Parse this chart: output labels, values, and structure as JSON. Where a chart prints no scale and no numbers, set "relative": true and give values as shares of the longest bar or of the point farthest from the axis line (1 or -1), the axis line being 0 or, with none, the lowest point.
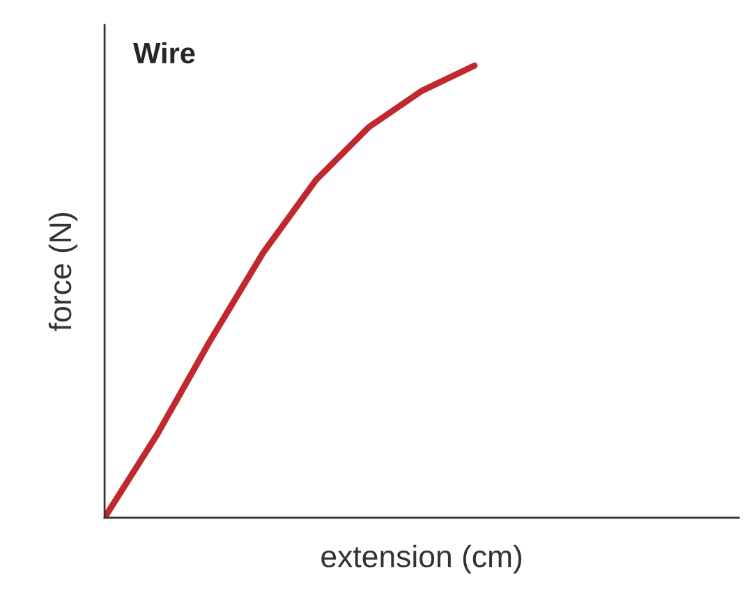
{
  "chart_data": {
    "type": "line",
    "title": "Wire",
    "xlabel": "extension (cm)",
    "ylabel": "force (N)",
    "relative": true,
    "categories": [
      null,
      null,
      null,
      null,
      null,
      null,
      null,
      null,
      null,
      null,
      null,
      null,
      null
    ],
    "series": [
      {
        "color": "#c0282d",
        "values": [
          0,
          0.185,
          0.392,
          0.586,
          0.747,
          0.864,
          0.944,
          1,
          null,
          null,
          null,
          null,
          null
        ]
      }
    ]
  }
}
